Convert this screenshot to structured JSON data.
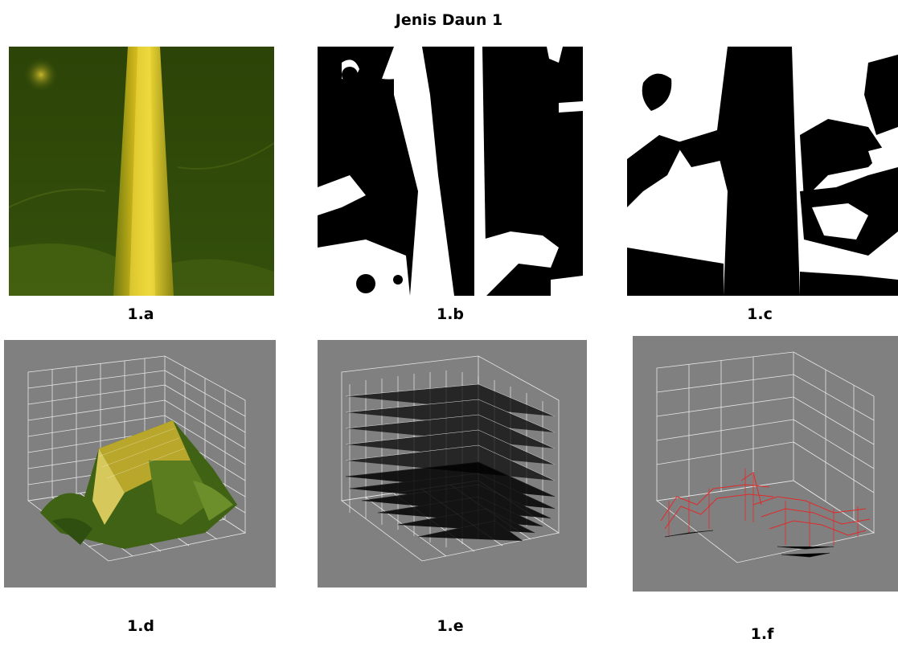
{
  "figure": {
    "title": "Jenis Daun 1",
    "panels": [
      {
        "label": "1.a",
        "kind": "leaf photo"
      },
      {
        "label": "1.b",
        "kind": "binary mask"
      },
      {
        "label": "1.c",
        "kind": "binary mask"
      },
      {
        "label": "1.d",
        "kind": "3D surface plot"
      },
      {
        "label": "1.e",
        "kind": "3D mesh plot"
      },
      {
        "label": "1.f",
        "kind": "3D mesh plot"
      }
    ]
  },
  "colors": {
    "leaf_green": "#2f4a0a",
    "vein_yellow": "#d7c21e",
    "plot_bg": "#808080",
    "grid": "#e8e8e8",
    "mesh_red": "#e02a2a"
  }
}
